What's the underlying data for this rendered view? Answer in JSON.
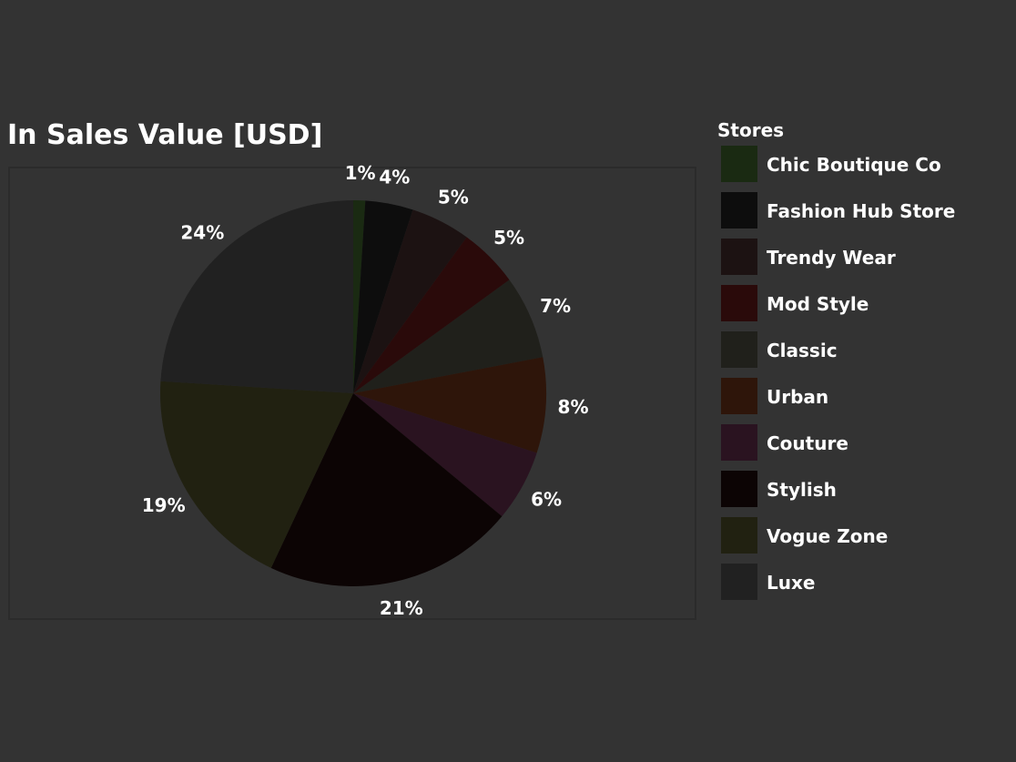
{
  "chart_data": {
    "type": "pie",
    "title": "In Sales Value [USD]",
    "legend_title": "Stores",
    "legend_position": "right",
    "categories": [
      "Chic Boutique Co",
      "Fashion Hub Store",
      "Trendy Wear",
      "Mod Style",
      "Classic",
      "Urban",
      "Couture",
      "Stylish",
      "Vogue Zone",
      "Luxe"
    ],
    "values": [
      1,
      4,
      5,
      5,
      7,
      8,
      6,
      21,
      19,
      24
    ],
    "labels": [
      "1%",
      "4%",
      "5%",
      "5%",
      "7%",
      "8%",
      "6%",
      "21%",
      "19%",
      "24%"
    ],
    "colors": [
      "#1a2a12",
      "#0d0d0d",
      "#1c1212",
      "#2a0a0a",
      "#20201b",
      "#2e150a",
      "#2a1320",
      "#0c0404",
      "#212111",
      "#212121"
    ]
  }
}
